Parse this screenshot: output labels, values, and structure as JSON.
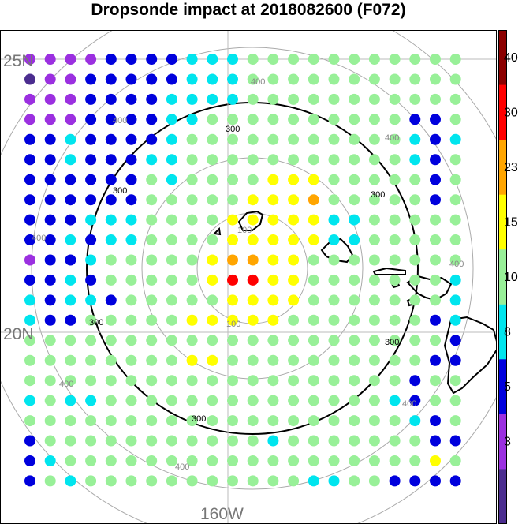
{
  "title": "Dropsonde impact at 2018082600 (F072)",
  "map": {
    "lat_labels": [
      "25N",
      "20N"
    ],
    "lon_labels": [
      "160W"
    ],
    "range_ring_labels": [
      "100",
      "300",
      "400"
    ],
    "center_values": [
      "100",
      "100"
    ],
    "colors": {
      "c0": "#4b2d8f",
      "c1": "#9b30e0",
      "c2": "#0000dd",
      "c3": "#00e5ee",
      "c4": "#98f098",
      "c5": "#ffff00",
      "c6": "#ffa500",
      "c7": "#ff0000",
      "c8": "#8b0000"
    },
    "grid_rows": [
      "1111222233344444444444",
      "0112222233344444444444",
      "1112222333344444444444",
      "1112222334444444444224",
      "2232222344444444444323",
      "2232223344444444444324",
      "2222224344445554444424",
      "2222224444455564444424",
      "2223334444555553344444",
      "2232334444555553344444",
      "1223444445665544444444",
      "2232444445775544444443",
      "3233244444555544444443",
      "3224444455555444444423",
      "4444444444444444444442",
      "4444444455444444444422",
      "4444444444444444444244",
      "3433444444444444443244",
      "4444444444444444444324",
      "2444444444443444444422",
      "2344444444444444444454",
      "2434444444444433442222"
    ]
  },
  "colorbar": {
    "labels": [
      "40",
      "30",
      "23",
      "15",
      "10",
      "8",
      "5",
      "3"
    ],
    "colors": [
      "#4b2d8f",
      "#9b30e0",
      "#0000dd",
      "#00e5ee",
      "#98f098",
      "#ffff00",
      "#ffa500",
      "#ff0000",
      "#8b0000"
    ]
  }
}
